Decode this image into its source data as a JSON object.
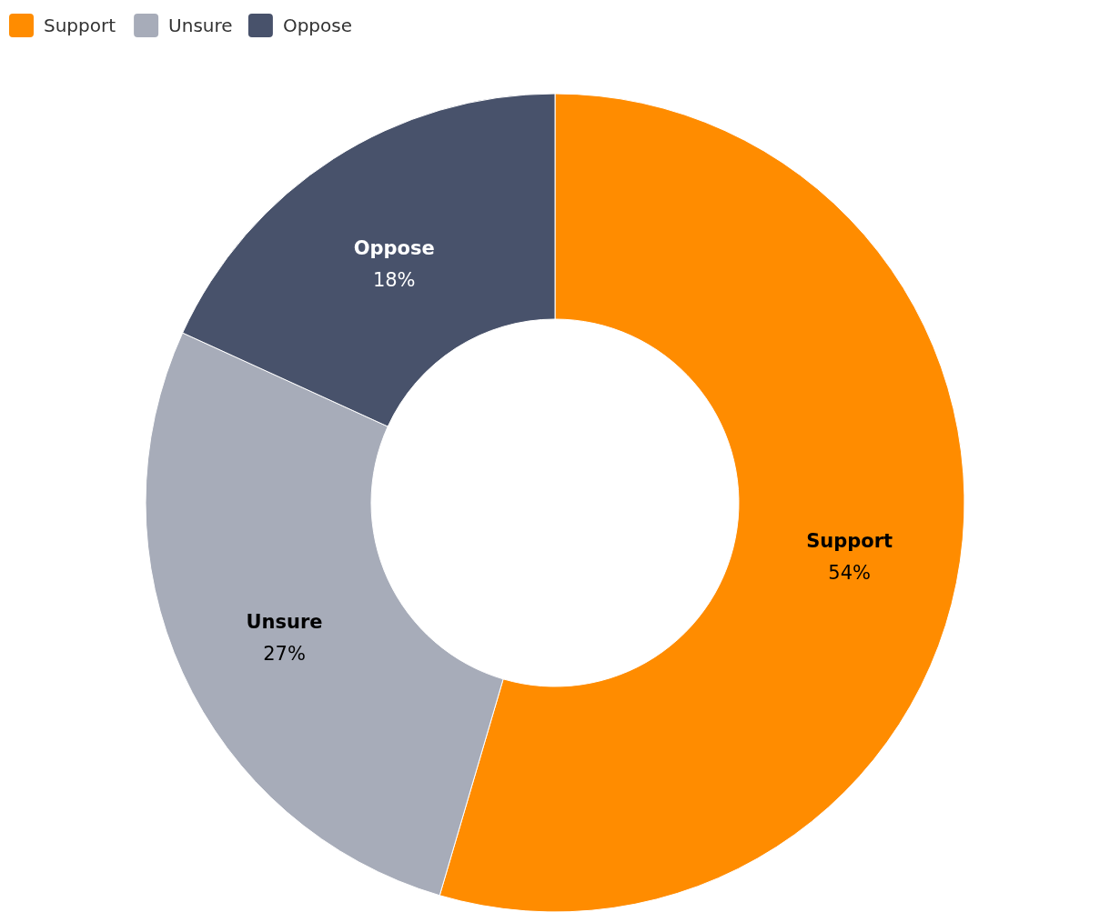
{
  "chart_data": {
    "type": "donut",
    "categories": [
      "Support",
      "Unsure",
      "Oppose"
    ],
    "values": [
      54,
      27,
      18
    ],
    "colors": [
      "#ff8c00",
      "#a7acb9",
      "#48526b"
    ],
    "value_labels": [
      "54%",
      "27%",
      "18%"
    ],
    "legend": "top left"
  }
}
